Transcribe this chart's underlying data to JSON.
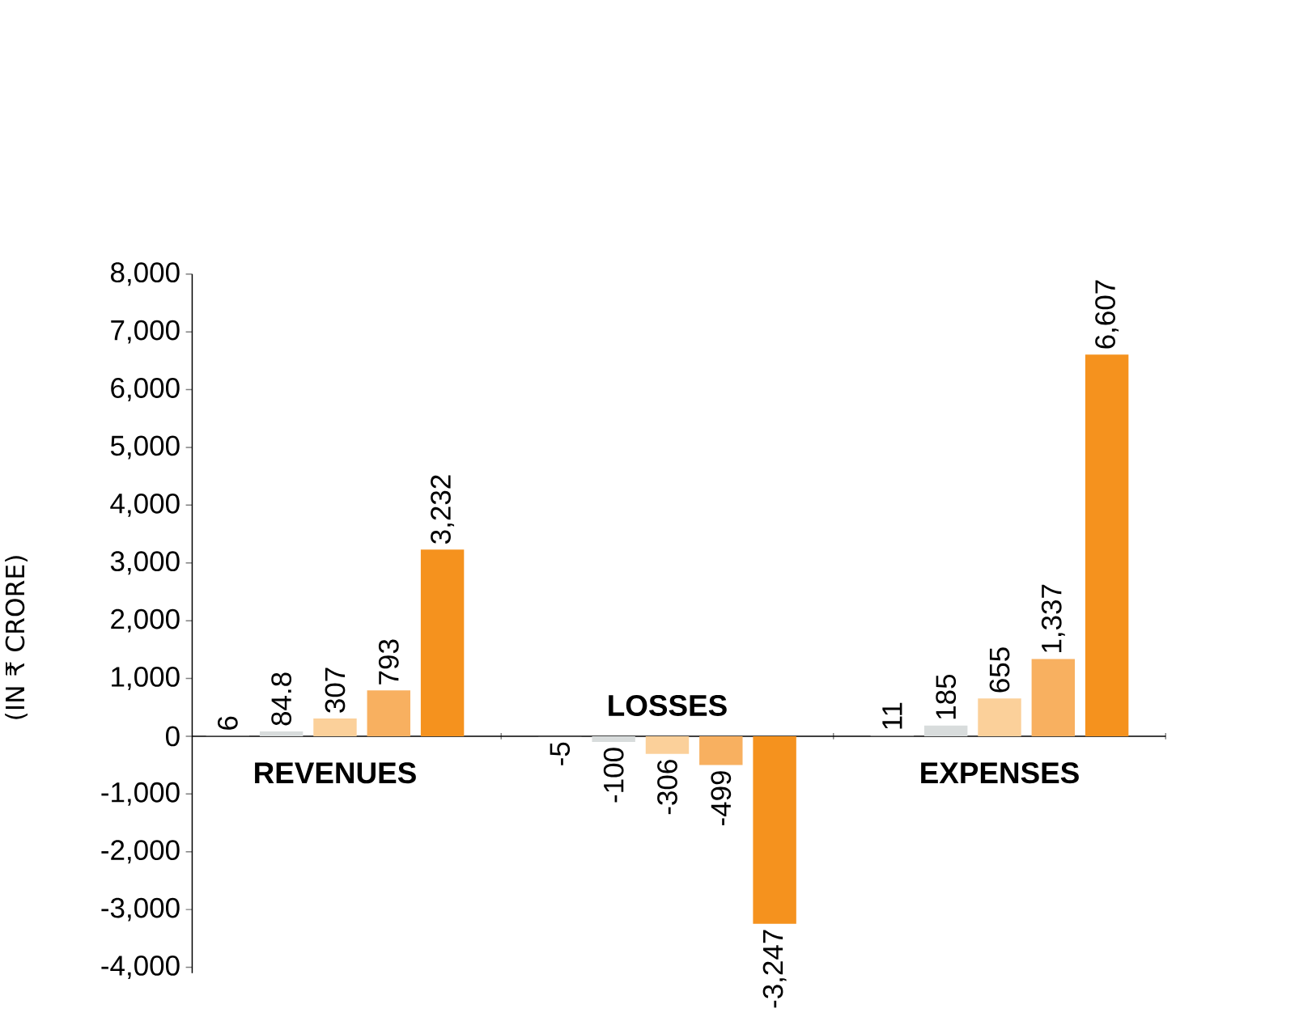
{
  "chart_data": {
    "type": "bar",
    "ylabel": "(IN ₹ CRORE)",
    "categories": [
      "REVENUES",
      "LOSSES",
      "EXPENSES"
    ],
    "series": [
      {
        "color": "#9a9a9a",
        "values": [
          6,
          -5,
          11
        ],
        "value_labels": [
          "6",
          "-5",
          "11"
        ]
      },
      {
        "color": "#d8dcdc",
        "values": [
          84.8,
          -100,
          185
        ],
        "value_labels": [
          "84.8",
          "-100",
          "185"
        ]
      },
      {
        "color": "#fbd09a",
        "values": [
          307,
          -306,
          655
        ],
        "value_labels": [
          "307",
          "-306",
          "655"
        ]
      },
      {
        "color": "#f8b060",
        "values": [
          793,
          -499,
          1337
        ],
        "value_labels": [
          "793",
          "-499",
          "1,337"
        ]
      },
      {
        "color": "#f5921e",
        "values": [
          3232,
          -3247,
          6607
        ],
        "value_labels": [
          "3,232",
          "-3,247",
          "6,607"
        ]
      }
    ],
    "ylim": [
      -4100,
      8000
    ],
    "yticks": [
      {
        "value": -4000,
        "label": "-4,000"
      },
      {
        "value": -3000,
        "label": "-3,000"
      },
      {
        "value": -2000,
        "label": "-2,000"
      },
      {
        "value": -1000,
        "label": "-1,000"
      },
      0,
      {
        "value": 1000,
        "label": "1,000"
      },
      {
        "value": 2000,
        "label": "2,000"
      },
      {
        "value": 3000,
        "label": "3,000"
      },
      {
        "value": 4000,
        "label": "4,000"
      },
      {
        "value": 5000,
        "label": "5,000"
      },
      {
        "value": 6000,
        "label": "6,000"
      },
      {
        "value": 7000,
        "label": "7,000"
      },
      {
        "value": 8000,
        "label": "8,000"
      }
    ]
  }
}
